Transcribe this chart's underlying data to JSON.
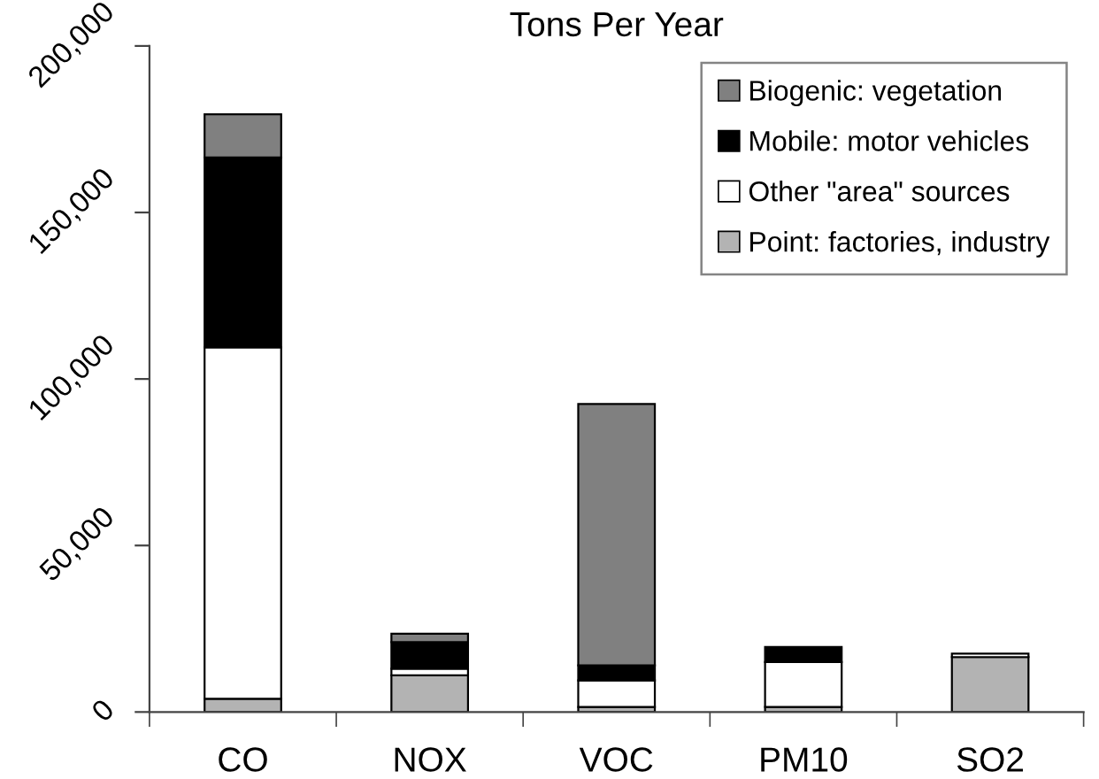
{
  "chart_data": {
    "type": "bar",
    "title": "Tons Per Year",
    "categories": [
      "CO",
      "NOX",
      "VOC",
      "PM10",
      "SO2"
    ],
    "stacked": true,
    "series": [
      {
        "name": "Point: factories, industry",
        "color": "#b3b3b3",
        "values": [
          4000,
          11000,
          1500,
          1500,
          16500
        ]
      },
      {
        "name": "Other \"area\" sources",
        "color": "#ffffff",
        "values": [
          105500,
          2000,
          8000,
          13500,
          1000
        ]
      },
      {
        "name": "Mobile: motor vehicles",
        "color": "#000000",
        "values": [
          57000,
          8000,
          4500,
          4500,
          null
        ]
      },
      {
        "name": "Biogenic: vegetation",
        "color": "#808080",
        "values": [
          13000,
          2500,
          78500,
          null,
          null
        ]
      }
    ],
    "ylim": [
      0,
      200000
    ],
    "yticks": [
      0,
      {
        "value": 50000,
        "label": "50,000"
      },
      {
        "value": 100000,
        "label": "100,000"
      },
      {
        "value": 150000,
        "label": "150,000"
      },
      {
        "value": 200000,
        "label": "200,000"
      }
    ],
    "legend": "top right"
  }
}
